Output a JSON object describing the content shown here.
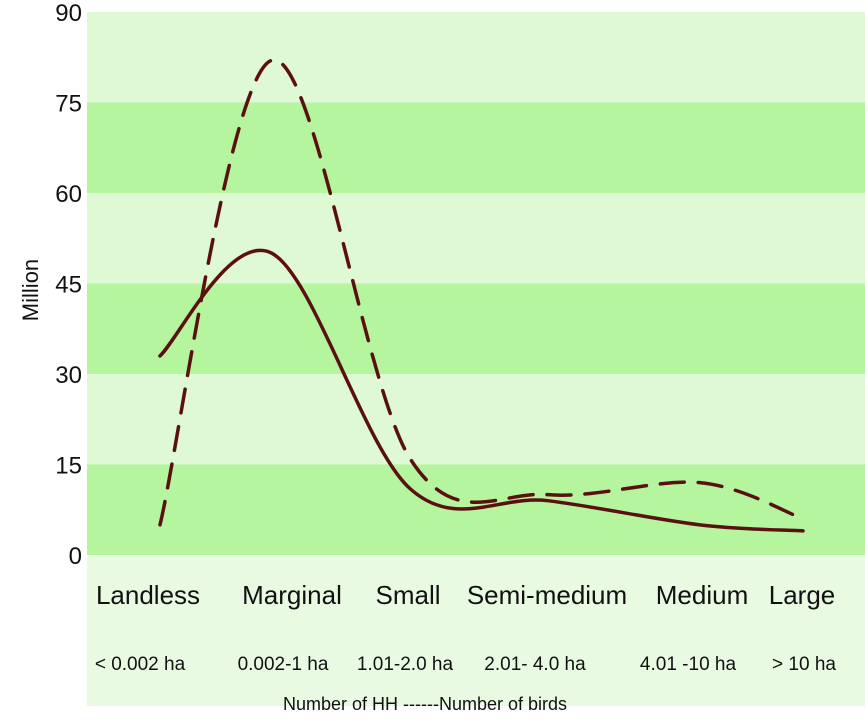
{
  "chart_data": {
    "type": "line",
    "ylabel": "Million",
    "xlabel": "Number of HH ------Number of birds",
    "ylim": [
      0,
      90
    ],
    "yticks": [
      0,
      15,
      30,
      45,
      60,
      75,
      90
    ],
    "grid": true,
    "categories": [
      "Landless",
      "Marginal",
      "Small",
      "Semi-medium",
      "Medium",
      "Large"
    ],
    "subcategories": [
      "< 0.002 ha",
      "0.002-1 ha",
      "1.01-2.0 ha",
      "2.01- 4.0 ha",
      "4.01 -10 ha",
      "> 10 ha"
    ],
    "series": [
      {
        "style": "solid",
        "values": [
          33,
          50,
          11,
          9,
          5,
          4
        ]
      },
      {
        "style": "dashed",
        "values": [
          5,
          82,
          16,
          10,
          12,
          6
        ]
      }
    ],
    "colors": {
      "band_light": "#def9d4",
      "band_dark": "#b5f59e",
      "line": "#5a1010",
      "axis_strip": "#e8fbe2"
    }
  }
}
